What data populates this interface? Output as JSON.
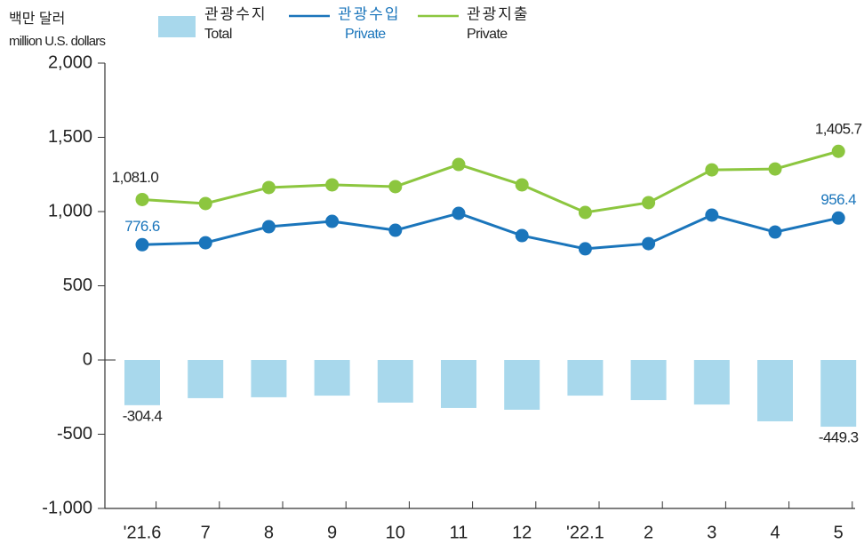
{
  "chart_data": {
    "type": "bar_line",
    "y_label": "백만 달러",
    "y_label_en": "million U.S. dollars",
    "categories": [
      "'21.6",
      "7",
      "8",
      "9",
      "10",
      "11",
      "12",
      "'22.1",
      "2",
      "3",
      "4",
      "5"
    ],
    "series": [
      {
        "name": "관광수지",
        "subname": "Total",
        "kind": "bar",
        "color": "#a8d8ec",
        "values": [
          -304.4,
          -257,
          -251,
          -240,
          -287,
          -323,
          -335,
          -240,
          -270,
          -300,
          -413,
          -449.3
        ],
        "value_labels": [
          "-304.4",
          null,
          null,
          null,
          null,
          null,
          null,
          null,
          null,
          null,
          null,
          "-449.3"
        ]
      },
      {
        "name": "관광수입",
        "subname": "Private",
        "kind": "line",
        "color": "#1a75bb",
        "values": [
          776.6,
          790,
          898,
          934,
          874,
          988,
          838,
          749,
          784,
          976,
          862,
          956.4
        ],
        "value_labels": [
          "776.6",
          null,
          null,
          null,
          null,
          null,
          null,
          null,
          null,
          null,
          null,
          "956.4"
        ]
      },
      {
        "name": "관광지출",
        "subname": "Private",
        "kind": "line",
        "color": "#8cc63f",
        "values": [
          1081.0,
          1054,
          1162,
          1180,
          1168,
          1317,
          1180,
          994,
          1060,
          1281,
          1287,
          1405.7
        ],
        "value_labels": [
          "1,081.0",
          null,
          null,
          null,
          null,
          null,
          null,
          null,
          null,
          null,
          null,
          "1,405.7"
        ]
      }
    ],
    "ylim": [
      -1000,
      2000
    ],
    "yticks": [
      {
        "value": -1000,
        "label": "-1,000"
      },
      -500,
      0,
      500,
      {
        "value": 1000,
        "label": "1,000"
      },
      {
        "value": 1500,
        "label": "1,500"
      },
      {
        "value": 2000,
        "label": "2,000"
      }
    ]
  }
}
